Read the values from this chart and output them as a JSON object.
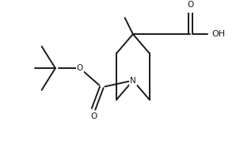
{
  "bg_color": "#ffffff",
  "line_color": "#1a1a1a",
  "line_width": 1.4,
  "font_size": 7.5,
  "xlim": [
    -4.5,
    4.0
  ],
  "ylim": [
    -2.2,
    2.2
  ]
}
